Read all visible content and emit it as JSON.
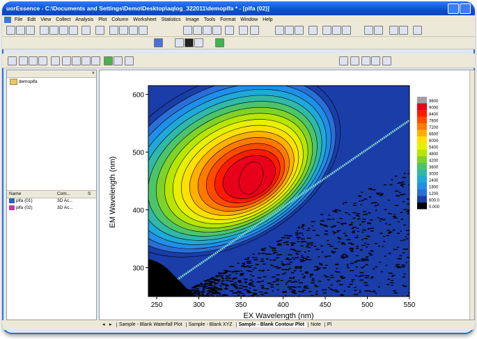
{
  "window": {
    "title": "uorEssence - C:\\Documents and Settings\\Demo\\Desktop\\aqlog_322011\\demoplfa * - [plfa (02)]"
  },
  "menu": [
    "File",
    "Edit",
    "View",
    "Collect",
    "Analysis",
    "Plot",
    "Column",
    "Worksheet",
    "Statistics",
    "Image",
    "Tools",
    "Format",
    "Window",
    "Help"
  ],
  "project_tree": {
    "root": "demoplfa"
  },
  "file_list": {
    "columns": [
      "Name",
      "Com...",
      "S"
    ],
    "rows": [
      {
        "name": "plfa (01)",
        "comment": "3D Ac..."
      },
      {
        "name": "plfa (02)",
        "comment": "3D Ac..."
      }
    ]
  },
  "tabs": [
    "Sample - Blank Waterfall Plot",
    "Sample - Blank XYZ",
    "Sample - Blank Contour Plot",
    "Note",
    "Pl"
  ],
  "active_tab_index": 2,
  "chart_data": {
    "type": "heatmap",
    "xlabel": "EX Wavelength (nm)",
    "ylabel": "EM Wavelength (nm)",
    "xlim": [
      240,
      550
    ],
    "ylim": [
      250,
      615
    ],
    "x_ticks": [
      250,
      300,
      350,
      400,
      450,
      500,
      550
    ],
    "y_ticks": [
      300,
      400,
      500,
      600
    ],
    "colorbar_levels": [
      "9600",
      "9000",
      "8400",
      "7800",
      "7200",
      "6600",
      "6000",
      "5400",
      "4800",
      "4200",
      "3600",
      "3000",
      "2400",
      "1800",
      "1200",
      "600.0",
      "0.000"
    ],
    "colorbar_colors": [
      "#a0a0a0",
      "#e8001a",
      "#ff1a00",
      "#ff4a00",
      "#ff7a00",
      "#ffb000",
      "#ffe000",
      "#e6f000",
      "#b8e600",
      "#7fd22a",
      "#4cc46a",
      "#30b8a8",
      "#1fa8d8",
      "#1f8fe8",
      "#2a6fd6",
      "#1a3da8",
      "#000000"
    ]
  }
}
